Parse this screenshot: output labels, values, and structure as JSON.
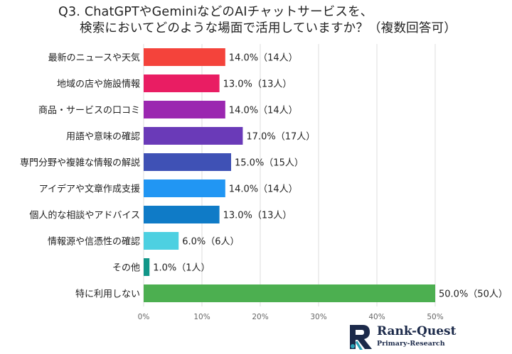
{
  "chart_data": {
    "type": "bar",
    "orientation": "horizontal",
    "title_line1": "Q3. ChatGPTやGeminiなどのAIチャットサービスを、",
    "title_line2": "検索においてどのような場面で活用していますか？（複数回答可）",
    "categories": [
      "最新のニュースや天気",
      "地域の店や施設情報",
      "商品・サービスの口コミ",
      "用語や意味の確認",
      "専門分野や複雑な情報の解説",
      "アイデアや文章作成支援",
      "個人的な相談やアドバイス",
      "情報源や信憑性の確認",
      "その他",
      "特に利用しない"
    ],
    "values": [
      14.0,
      13.0,
      14.0,
      17.0,
      15.0,
      14.0,
      13.0,
      6.0,
      1.0,
      50.0
    ],
    "data_labels": [
      "14.0%（14人）",
      "13.0%（13人）",
      "14.0%（14人）",
      "17.0%（17人）",
      "15.0%（15人）",
      "14.0%（14人）",
      "13.0%（13人）",
      "6.0%（6人）",
      "1.0%（1人）",
      "50.0%（50人）"
    ],
    "bar_colors": [
      "#f4433b",
      "#e91d63",
      "#9b27b0",
      "#6a3ab8",
      "#3f51b5",
      "#2196f3",
      "#0f7bc7",
      "#4dd0e1",
      "#119688",
      "#4caf50"
    ],
    "x_ticks": [
      0,
      10,
      20,
      30,
      40,
      50
    ],
    "x_tick_labels": [
      "0%",
      "10%",
      "20%",
      "30%",
      "40%",
      "50%"
    ],
    "xlim": [
      0,
      50
    ],
    "grid": true
  },
  "logo": {
    "name": "Rank-Quest",
    "subtitle": "Primary-Research",
    "colors": {
      "navy": "#1c2a4a",
      "teal": "#2aa3b8"
    }
  }
}
